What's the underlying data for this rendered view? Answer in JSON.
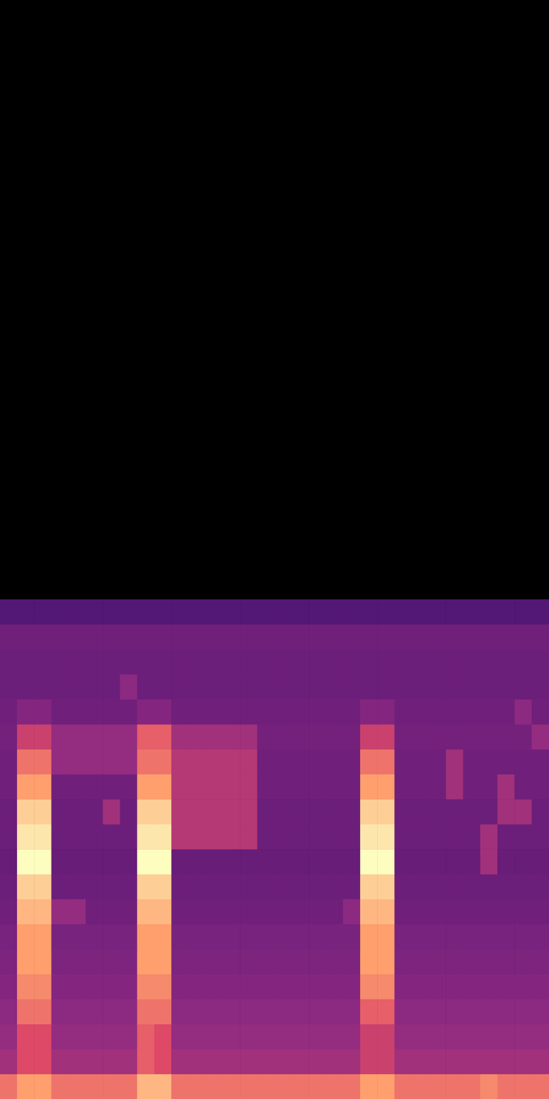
{
  "chart_data": {
    "type": "heatmap",
    "xlim": [
      0,
      32
    ],
    "ylim": [
      0,
      44
    ],
    "zlim": [
      0,
      10
    ],
    "tick_labels": false,
    "grid": false,
    "z": [
      [
        7,
        8,
        8,
        7,
        7,
        7,
        7,
        7,
        8.5,
        8.5,
        7,
        7,
        7,
        7,
        7,
        7,
        7,
        7,
        7,
        7,
        7,
        8,
        8,
        7,
        7,
        7,
        7,
        7,
        7.5,
        7,
        7,
        7
      ],
      [
        4.5,
        6,
        6,
        4.5,
        4.5,
        4.5,
        4.5,
        4.5,
        6.5,
        6,
        4.5,
        4.5,
        4.5,
        4.5,
        4.5,
        4.5,
        4.5,
        4.5,
        4.5,
        4.5,
        4.5,
        5.5,
        5.5,
        4.5,
        4.5,
        4.5,
        4.5,
        4.5,
        4.5,
        4.5,
        4.5,
        4.5
      ],
      [
        4.2,
        6,
        6,
        4.2,
        4.2,
        4.2,
        4.2,
        4.2,
        6.5,
        6,
        4.2,
        4.2,
        4.2,
        4.2,
        4.2,
        4.2,
        4.2,
        4.2,
        4.2,
        4.2,
        4.2,
        5.5,
        5.5,
        4.2,
        4.2,
        4.2,
        4.2,
        4.2,
        4.2,
        4.2,
        4.2,
        4.2
      ],
      [
        4,
        7,
        7,
        4,
        4,
        4,
        4,
        4,
        7,
        7,
        4,
        4,
        4,
        4,
        4,
        4,
        4,
        4,
        4,
        4,
        4,
        6.5,
        6.5,
        4,
        4,
        4,
        4,
        4,
        4,
        4,
        4,
        4
      ],
      [
        3.8,
        7.5,
        7.5,
        3.8,
        3.8,
        3.8,
        3.8,
        3.8,
        7.5,
        7.5,
        3.8,
        3.8,
        3.8,
        3.8,
        3.8,
        3.8,
        3.8,
        3.8,
        3.8,
        3.8,
        3.8,
        7.5,
        7.5,
        3.8,
        3.8,
        3.8,
        3.8,
        3.8,
        3.8,
        3.8,
        3.8,
        3.8
      ],
      [
        3.6,
        8,
        8,
        3.6,
        3.6,
        3.6,
        3.6,
        3.6,
        8,
        8,
        3.6,
        3.6,
        3.6,
        3.6,
        3.6,
        3.6,
        3.6,
        3.6,
        3.6,
        3.6,
        3.6,
        8,
        8,
        3.6,
        3.6,
        3.6,
        3.6,
        3.6,
        3.6,
        3.6,
        3.6,
        3.6
      ],
      [
        3.5,
        8,
        8,
        3.5,
        3.5,
        3.5,
        3.5,
        3.5,
        8,
        8,
        3.5,
        3.5,
        3.5,
        3.5,
        3.5,
        3.5,
        3.5,
        3.5,
        3.5,
        3.5,
        3.5,
        8,
        8,
        3.5,
        3.5,
        3.5,
        3.5,
        3.5,
        3.5,
        3.5,
        3.5,
        3.5
      ],
      [
        3.3,
        8.5,
        8.5,
        4.2,
        4.2,
        3.3,
        3.3,
        3.3,
        8.5,
        8.5,
        3.3,
        3.3,
        3.3,
        3.3,
        3.3,
        3.3,
        3.3,
        3.3,
        3.3,
        3.3,
        4,
        8.5,
        8.5,
        3.3,
        3.3,
        3.3,
        3.3,
        3.3,
        3.3,
        3.3,
        3.3,
        3.3
      ],
      [
        3.2,
        9,
        9,
        3.2,
        3.2,
        3.2,
        3.2,
        3.2,
        9,
        9,
        3.2,
        3.2,
        3.2,
        3.2,
        3.2,
        3.2,
        3.2,
        3.2,
        3.2,
        3.2,
        3.2,
        9,
        9,
        3.2,
        3.2,
        3.2,
        3.2,
        3.2,
        3.2,
        3.2,
        3.2,
        3.2
      ],
      [
        3.1,
        10,
        10,
        3.1,
        3.1,
        3.1,
        3.1,
        3.1,
        10,
        10,
        3.1,
        3.1,
        3.1,
        3.1,
        3.1,
        3.1,
        3.1,
        3.1,
        3.1,
        3.1,
        3.1,
        10,
        10,
        3.1,
        3.1,
        3.1,
        3.1,
        3.1,
        4.5,
        3.1,
        3.1,
        3.1
      ],
      [
        3.2,
        9.5,
        9.5,
        3.2,
        3.2,
        3.2,
        3.2,
        3.2,
        9.5,
        9.5,
        5,
        5,
        5,
        5,
        5,
        3.2,
        3.2,
        3.2,
        3.2,
        3.2,
        3.2,
        9.5,
        9.5,
        3.2,
        3.2,
        3.2,
        3.2,
        3.2,
        4.5,
        3.2,
        3.2,
        3.2
      ],
      [
        3.2,
        9,
        9,
        3.2,
        3.2,
        3.2,
        4.5,
        3.2,
        9,
        9,
        5,
        5,
        5,
        5,
        5,
        3.2,
        3.2,
        3.2,
        3.2,
        3.2,
        3.2,
        9,
        9,
        3.2,
        3.2,
        3.2,
        3.2,
        3.2,
        3.2,
        4.5,
        4.5,
        3.2
      ],
      [
        3.3,
        8,
        8,
        3.3,
        3.3,
        3.3,
        3.3,
        3.3,
        8,
        8,
        5,
        5,
        5,
        5,
        5,
        3.3,
        3.3,
        3.3,
        3.3,
        3.3,
        3.3,
        8,
        8,
        3.3,
        3.3,
        3.3,
        4.5,
        3.3,
        3.3,
        4.5,
        3.3,
        3.3
      ],
      [
        3.3,
        7,
        7,
        4.2,
        4.2,
        4.2,
        4.2,
        4.2,
        7,
        7,
        5,
        5,
        5,
        5,
        5,
        3.3,
        3.3,
        3.3,
        3.3,
        3.3,
        3.3,
        7,
        7,
        3.3,
        3.3,
        3.3,
        4.5,
        3.3,
        3.3,
        3.3,
        3.3,
        3.3
      ],
      [
        3.4,
        5.5,
        5.5,
        4.2,
        4.2,
        4.2,
        4.2,
        4.2,
        6.5,
        6.5,
        4.5,
        4.5,
        4.5,
        4.5,
        4.5,
        3.4,
        3.4,
        3.4,
        3.4,
        3.4,
        3.4,
        5.5,
        5.5,
        3.4,
        3.4,
        3.4,
        3.4,
        3.4,
        3.4,
        3.4,
        3.4,
        4.2
      ],
      [
        3.3,
        3.8,
        3.8,
        3.3,
        3.3,
        3.3,
        3.3,
        3.3,
        3.8,
        3.8,
        3.3,
        3.3,
        3.3,
        3.3,
        3.3,
        3.3,
        3.3,
        3.3,
        3.3,
        3.3,
        3.3,
        3.8,
        3.8,
        3.3,
        3.3,
        3.3,
        3.3,
        3.3,
        3.3,
        3.3,
        4,
        3.3
      ],
      [
        3.2,
        3.2,
        3.2,
        3.2,
        3.2,
        3.2,
        3.2,
        4,
        3.2,
        3.2,
        3.2,
        3.2,
        3.2,
        3.2,
        3.2,
        3.2,
        3.2,
        3.2,
        3.2,
        3.2,
        3.2,
        3.2,
        3.2,
        3.2,
        3.2,
        3.2,
        3.2,
        3.2,
        3.2,
        3.2,
        3.2,
        3.2
      ],
      [
        3.2,
        3.2,
        3.2,
        3.2,
        3.2,
        3.2,
        3.2,
        3.2,
        3.2,
        3.2,
        3.2,
        3.2,
        3.2,
        3.2,
        3.2,
        3.2,
        3.2,
        3.2,
        3.2,
        3.2,
        3.2,
        3.2,
        3.2,
        3.2,
        3.2,
        3.2,
        3.2,
        3.2,
        3.2,
        3.2,
        3.2,
        3.2
      ],
      [
        3.3,
        3.3,
        3.3,
        3.3,
        3.3,
        3.3,
        3.3,
        3.3,
        3.3,
        3.3,
        3.3,
        3.3,
        3.3,
        3.3,
        3.3,
        3.3,
        3.3,
        3.3,
        3.3,
        3.3,
        3.3,
        3.3,
        3.3,
        3.3,
        3.3,
        3.3,
        3.3,
        3.3,
        3.3,
        3.3,
        3.3,
        3.3
      ],
      [
        2.6,
        2.6,
        2.6,
        2.6,
        2.6,
        2.6,
        2.6,
        2.6,
        2.6,
        2.6,
        2.6,
        2.6,
        2.6,
        2.6,
        2.6,
        2.6,
        2.6,
        2.6,
        2.6,
        2.6,
        2.6,
        2.6,
        2.6,
        2.6,
        2.6,
        2.6,
        2.6,
        2.6,
        2.6,
        2.6,
        2.6,
        2.6
      ]
    ]
  }
}
